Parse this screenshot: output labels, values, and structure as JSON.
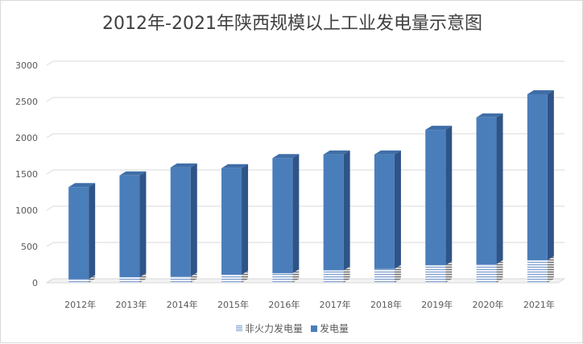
{
  "chart_data": {
    "type": "bar",
    "title": "2012年-2021年陕西规模以上工业发电量示意图",
    "xlabel": "",
    "ylabel": "",
    "categories": [
      "2012年",
      "2013年",
      "2014年",
      "2015年",
      "2016年",
      "2017年",
      "2018年",
      "2019年",
      "2020年",
      "2021年"
    ],
    "series": [
      {
        "name": "非火力发电量",
        "values": [
          50,
          75,
          85,
          110,
          130,
          170,
          190,
          240,
          255,
          310
        ]
      },
      {
        "name": "发电量",
        "values": [
          1320,
          1480,
          1590,
          1580,
          1720,
          1770,
          1770,
          2110,
          2280,
          2600
        ]
      }
    ],
    "ylim": [
      0,
      3000
    ],
    "yticks": [
      0,
      500,
      1000,
      1500,
      2000,
      2500,
      3000
    ],
    "grid": true,
    "legend": "bottom",
    "colors": {
      "total": "#4a7ebb",
      "non_thermal": "#7f9fcf"
    }
  },
  "legend": {
    "items": [
      {
        "label": "非火力发电量"
      },
      {
        "label": "发电量"
      }
    ]
  }
}
